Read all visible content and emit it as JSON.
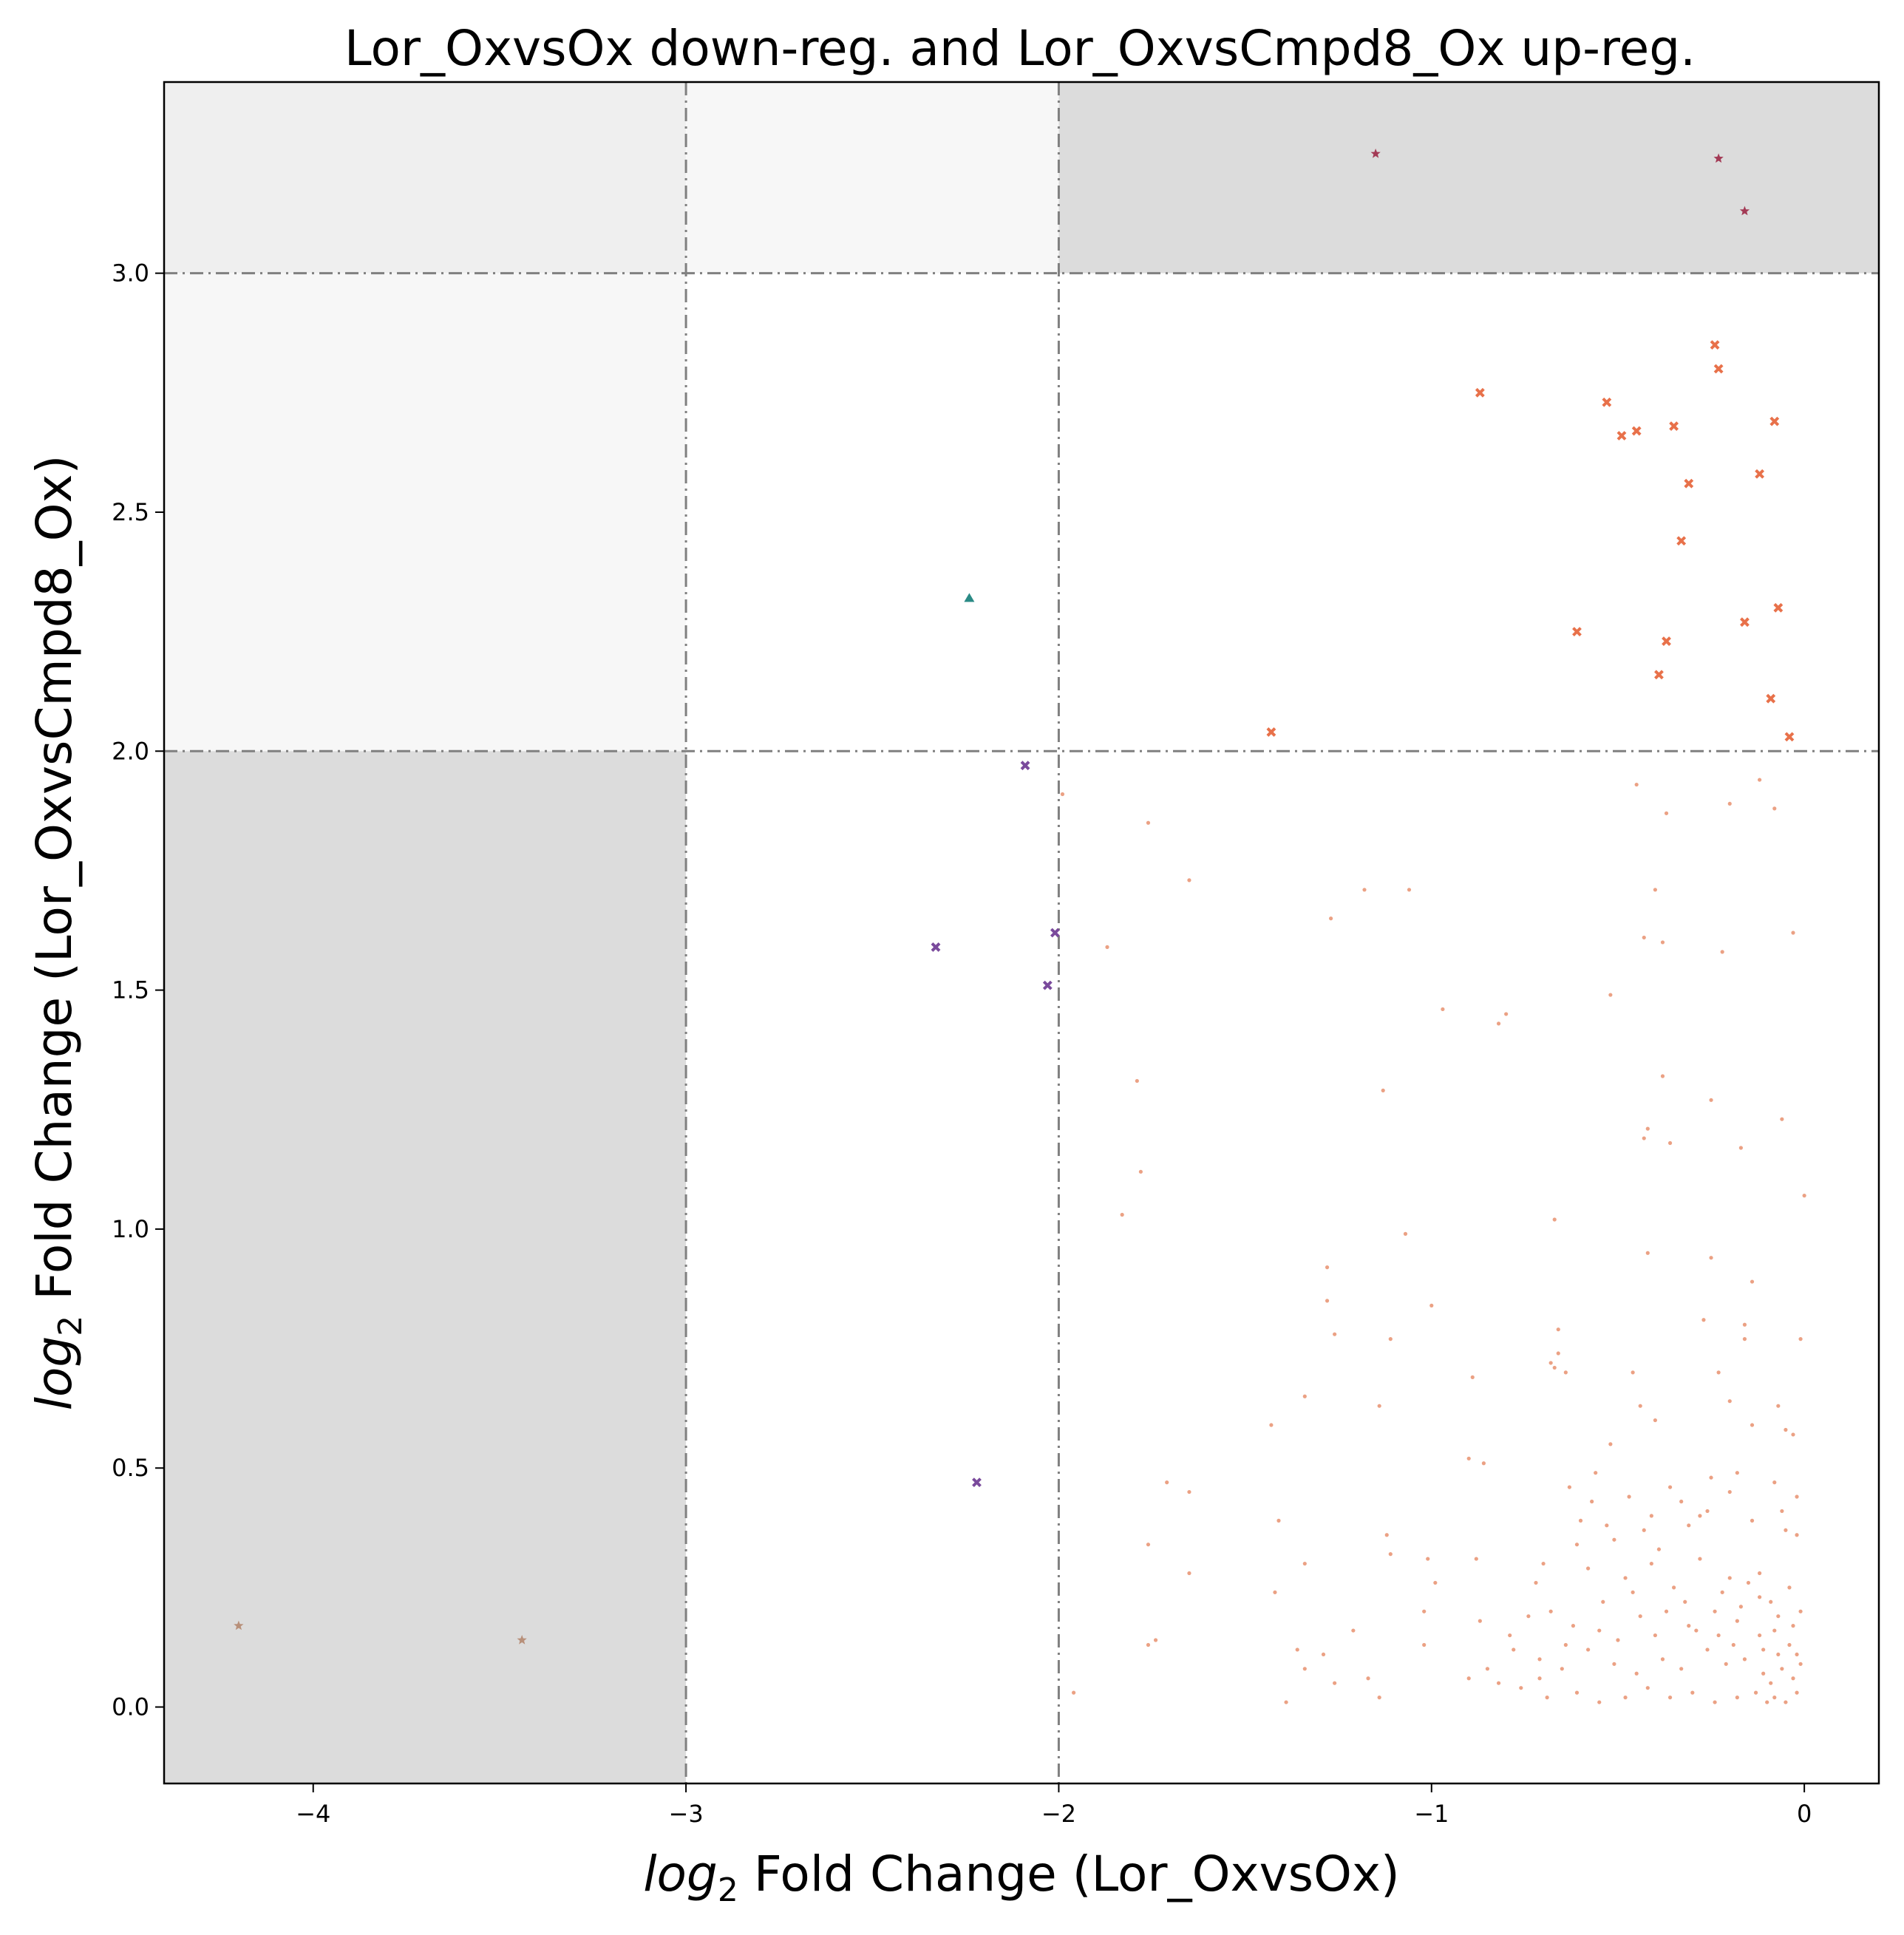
{
  "chart_data": {
    "type": "scatter",
    "title": "Lor_OxvsOx down-reg. and Lor_OxvsCmpd8_Ox up-reg.",
    "xlabel_prefix": "log",
    "xlabel_sub": "2",
    "xlabel_rest": " Fold Change (Lor_OxvsOx)",
    "ylabel_prefix": "log",
    "ylabel_sub": "2",
    "ylabel_rest": " Fold Change (Lor_OxvsCmpd8_Ox)",
    "xlim": [
      -4.4,
      0.2
    ],
    "ylim": [
      -0.16,
      3.4
    ],
    "x_ticks": [
      -4,
      -3,
      -2,
      -1,
      0
    ],
    "x_tick_labels": [
      "−4",
      "−3",
      "−2",
      "−1",
      "0"
    ],
    "y_ticks": [
      0.0,
      0.5,
      1.0,
      1.5,
      2.0,
      2.5,
      3.0
    ],
    "y_tick_labels": [
      "0.0",
      "0.5",
      "1.0",
      "1.5",
      "2.0",
      "2.5",
      "3.0"
    ],
    "thresholds": {
      "x": [
        -3,
        -2
      ],
      "y": [
        2,
        3
      ]
    },
    "regions": [
      {
        "x": [
          -4.4,
          -3
        ],
        "y": [
          3,
          3.4
        ],
        "color": "#efefef"
      },
      {
        "x": [
          -3,
          -2
        ],
        "y": [
          3,
          3.4
        ],
        "color": "#f7f7f7"
      },
      {
        "x": [
          -4.4,
          -3
        ],
        "y": [
          2,
          3
        ],
        "color": "#f7f7f7"
      },
      {
        "x": [
          -2,
          0.2
        ],
        "y": [
          3,
          3.4
        ],
        "color": "#dcdcdc"
      },
      {
        "x": [
          -4.4,
          -3
        ],
        "y": [
          -0.16,
          2
        ],
        "color": "#dcdcdc"
      }
    ],
    "series": [
      {
        "marker": "star",
        "color": "#a33a55",
        "points": [
          [
            -1.15,
            3.25
          ],
          [
            -0.23,
            3.24
          ],
          [
            -0.16,
            3.13
          ]
        ]
      },
      {
        "marker": "star",
        "color": "#b8907a",
        "points": [
          [
            -4.2,
            0.17
          ],
          [
            -3.44,
            0.14
          ]
        ]
      },
      {
        "marker": "triangle",
        "color": "#2a8a85",
        "points": [
          [
            -2.24,
            2.32
          ]
        ]
      },
      {
        "marker": "x",
        "color": "#7a4a9c",
        "points": [
          [
            -2.09,
            1.97
          ],
          [
            -2.01,
            1.62
          ],
          [
            -2.33,
            1.59
          ],
          [
            -2.03,
            1.51
          ],
          [
            -2.22,
            0.47
          ]
        ]
      },
      {
        "marker": "x",
        "color": "#e8714a",
        "points": [
          [
            -0.24,
            2.85
          ],
          [
            -0.23,
            2.8
          ],
          [
            -0.87,
            2.75
          ],
          [
            -0.53,
            2.73
          ],
          [
            -0.08,
            2.69
          ],
          [
            -0.35,
            2.68
          ],
          [
            -0.45,
            2.67
          ],
          [
            -0.49,
            2.66
          ],
          [
            -0.12,
            2.58
          ],
          [
            -0.31,
            2.56
          ],
          [
            -0.33,
            2.44
          ],
          [
            -0.07,
            2.3
          ],
          [
            -0.16,
            2.27
          ],
          [
            -0.61,
            2.25
          ],
          [
            -0.37,
            2.23
          ],
          [
            -0.39,
            2.16
          ],
          [
            -0.09,
            2.11
          ],
          [
            -1.43,
            2.04
          ],
          [
            -0.04,
            2.03
          ]
        ]
      },
      {
        "marker": "dot",
        "color": "#e8906e",
        "points": [
          [
            -1.99,
            1.91
          ],
          [
            -1.76,
            1.85
          ],
          [
            -1.65,
            1.73
          ],
          [
            -1.18,
            1.71
          ],
          [
            -1.06,
            1.71
          ],
          [
            -1.27,
            1.65
          ],
          [
            -1.87,
            1.59
          ],
          [
            -0.97,
            1.46
          ],
          [
            -0.8,
            1.45
          ],
          [
            -0.82,
            1.43
          ],
          [
            -1.79,
            1.31
          ],
          [
            -1.13,
            1.29
          ],
          [
            -1.78,
            1.12
          ],
          [
            -1.83,
            1.03
          ],
          [
            -1.07,
            0.99
          ],
          [
            -1.28,
            0.92
          ],
          [
            -1.28,
            0.85
          ],
          [
            -1.0,
            0.84
          ],
          [
            -1.26,
            0.78
          ],
          [
            -1.11,
            0.77
          ],
          [
            -1.34,
            0.65
          ],
          [
            -1.14,
            0.63
          ],
          [
            -1.43,
            0.59
          ],
          [
            -0.89,
            0.69
          ],
          [
            -0.86,
            0.51
          ],
          [
            -0.9,
            0.52
          ],
          [
            -1.71,
            0.47
          ],
          [
            -1.65,
            0.45
          ],
          [
            -1.41,
            0.39
          ],
          [
            -1.12,
            0.36
          ],
          [
            -1.76,
            0.34
          ],
          [
            -1.11,
            0.32
          ],
          [
            -1.65,
            0.28
          ],
          [
            -1.01,
            0.31
          ],
          [
            -1.42,
            0.24
          ],
          [
            -1.34,
            0.3
          ],
          [
            -0.99,
            0.26
          ],
          [
            -0.88,
            0.31
          ],
          [
            -1.21,
            0.16
          ],
          [
            -1.02,
            0.2
          ],
          [
            -1.36,
            0.12
          ],
          [
            -1.29,
            0.11
          ],
          [
            -1.74,
            0.14
          ],
          [
            -1.76,
            0.13
          ],
          [
            -1.02,
            0.13
          ],
          [
            -1.34,
            0.08
          ],
          [
            -1.17,
            0.06
          ],
          [
            -1.26,
            0.05
          ],
          [
            -1.14,
            0.02
          ],
          [
            -1.39,
            0.01
          ],
          [
            -1.96,
            0.03
          ],
          [
            -0.67,
            1.02
          ],
          [
            -0.52,
            1.49
          ],
          [
            -0.43,
            1.61
          ],
          [
            -0.38,
            1.6
          ],
          [
            -0.36,
            1.18
          ],
          [
            -0.43,
            1.19
          ],
          [
            -0.42,
            1.21
          ],
          [
            -0.38,
            1.32
          ],
          [
            -0.42,
            0.95
          ],
          [
            -0.25,
            1.27
          ],
          [
            -0.25,
            0.94
          ],
          [
            -0.17,
            1.17
          ],
          [
            -0.06,
            1.23
          ],
          [
            0.0,
            1.07
          ],
          [
            -0.22,
            1.58
          ],
          [
            -0.03,
            1.62
          ],
          [
            -0.08,
            1.88
          ],
          [
            -0.12,
            1.94
          ],
          [
            -0.2,
            1.89
          ],
          [
            -0.45,
            1.93
          ],
          [
            -0.37,
            1.87
          ],
          [
            -0.4,
            1.71
          ],
          [
            -0.66,
            0.79
          ],
          [
            -0.66,
            0.74
          ],
          [
            -0.64,
            0.7
          ],
          [
            -0.67,
            0.71
          ],
          [
            -0.68,
            0.72
          ],
          [
            -0.4,
            0.6
          ],
          [
            -0.44,
            0.63
          ],
          [
            -0.23,
            0.7
          ],
          [
            -0.27,
            0.81
          ],
          [
            -0.16,
            0.8
          ],
          [
            -0.16,
            0.77
          ],
          [
            -0.14,
            0.89
          ],
          [
            -0.2,
            0.64
          ],
          [
            -0.07,
            0.63
          ],
          [
            -0.01,
            0.77
          ],
          [
            -0.14,
            0.59
          ],
          [
            -0.56,
            0.49
          ],
          [
            -0.52,
            0.55
          ],
          [
            -0.46,
            0.7
          ],
          [
            -0.25,
            0.48
          ],
          [
            -0.18,
            0.49
          ],
          [
            -0.03,
            0.57
          ],
          [
            -0.05,
            0.58
          ],
          [
            -0.36,
            0.46
          ],
          [
            -0.28,
            0.4
          ],
          [
            -0.08,
            0.47
          ],
          [
            -0.02,
            0.44
          ],
          [
            -0.6,
            0.39
          ],
          [
            -0.53,
            0.38
          ],
          [
            -0.51,
            0.35
          ],
          [
            -0.43,
            0.37
          ],
          [
            -0.39,
            0.33
          ],
          [
            -0.31,
            0.38
          ],
          [
            -0.2,
            0.27
          ],
          [
            -0.12,
            0.28
          ],
          [
            -0.05,
            0.37
          ],
          [
            -0.02,
            0.36
          ],
          [
            -0.72,
            0.26
          ],
          [
            -0.68,
            0.2
          ],
          [
            -0.62,
            0.17
          ],
          [
            -0.55,
            0.16
          ],
          [
            -0.44,
            0.19
          ],
          [
            -0.32,
            0.22
          ],
          [
            -0.24,
            0.2
          ],
          [
            -0.18,
            0.18
          ],
          [
            -0.12,
            0.15
          ],
          [
            -0.07,
            0.19
          ],
          [
            -0.03,
            0.17
          ],
          [
            -0.01,
            0.2
          ],
          [
            -0.78,
            0.12
          ],
          [
            -0.71,
            0.1
          ],
          [
            -0.65,
            0.08
          ],
          [
            -0.58,
            0.12
          ],
          [
            -0.51,
            0.09
          ],
          [
            -0.45,
            0.07
          ],
          [
            -0.38,
            0.1
          ],
          [
            -0.33,
            0.08
          ],
          [
            -0.26,
            0.12
          ],
          [
            -0.21,
            0.09
          ],
          [
            -0.16,
            0.1
          ],
          [
            -0.11,
            0.07
          ],
          [
            -0.09,
            0.05
          ],
          [
            -0.06,
            0.08
          ],
          [
            -0.03,
            0.06
          ],
          [
            -0.82,
            0.05
          ],
          [
            -0.76,
            0.04
          ],
          [
            -0.69,
            0.02
          ],
          [
            -0.61,
            0.03
          ],
          [
            -0.55,
            0.01
          ],
          [
            -0.48,
            0.02
          ],
          [
            -0.42,
            0.04
          ],
          [
            -0.36,
            0.02
          ],
          [
            -0.3,
            0.03
          ],
          [
            -0.24,
            0.01
          ],
          [
            -0.18,
            0.02
          ],
          [
            -0.13,
            0.03
          ],
          [
            -0.1,
            0.01
          ],
          [
            -0.08,
            0.02
          ],
          [
            -0.05,
            0.01
          ],
          [
            -0.02,
            0.03
          ],
          [
            -0.58,
            0.29
          ],
          [
            -0.48,
            0.27
          ],
          [
            -0.41,
            0.3
          ],
          [
            -0.35,
            0.25
          ],
          [
            -0.28,
            0.31
          ],
          [
            -0.22,
            0.24
          ],
          [
            -0.15,
            0.26
          ],
          [
            -0.09,
            0.22
          ],
          [
            -0.04,
            0.25
          ],
          [
            -0.63,
            0.46
          ],
          [
            -0.57,
            0.43
          ],
          [
            -0.47,
            0.44
          ],
          [
            -0.41,
            0.4
          ],
          [
            -0.33,
            0.43
          ],
          [
            -0.26,
            0.41
          ],
          [
            -0.2,
            0.45
          ],
          [
            -0.14,
            0.39
          ],
          [
            -0.06,
            0.41
          ],
          [
            -0.74,
            0.19
          ],
          [
            -0.79,
            0.15
          ],
          [
            -0.85,
            0.08
          ],
          [
            -0.71,
            0.06
          ],
          [
            -0.64,
            0.13
          ],
          [
            -0.5,
            0.14
          ],
          [
            -0.4,
            0.15
          ],
          [
            -0.29,
            0.16
          ],
          [
            -0.19,
            0.13
          ],
          [
            -0.11,
            0.12
          ],
          [
            -0.07,
            0.11
          ],
          [
            -0.01,
            0.09
          ],
          [
            -0.9,
            0.06
          ],
          [
            -0.87,
            0.18
          ],
          [
            -0.7,
            0.3
          ],
          [
            -0.61,
            0.34
          ],
          [
            -0.54,
            0.22
          ],
          [
            -0.46,
            0.24
          ],
          [
            -0.37,
            0.2
          ],
          [
            -0.31,
            0.17
          ],
          [
            -0.23,
            0.15
          ],
          [
            -0.17,
            0.21
          ],
          [
            -0.12,
            0.23
          ],
          [
            -0.08,
            0.16
          ],
          [
            -0.04,
            0.13
          ],
          [
            -0.02,
            0.11
          ]
        ]
      }
    ]
  }
}
